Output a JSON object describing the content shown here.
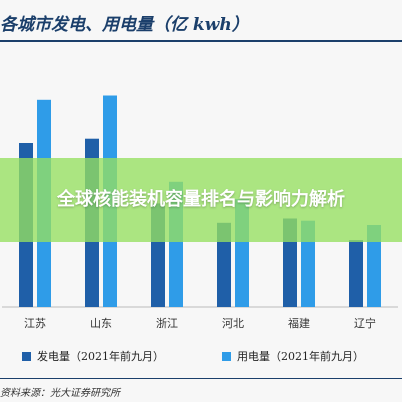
{
  "title": "各城市发电、用电量（亿 kwh）",
  "banner": {
    "text": "全球核能装机容量排名与影响力解析"
  },
  "source": "资料来源：光大证券研究所",
  "colors": {
    "series1": "#1f5fa8",
    "series2": "#2f9ce8",
    "banner": "#96e060"
  },
  "chart_data": {
    "type": "bar",
    "title": "各城市发电、用电量（亿 kwh）",
    "categories": [
      "江苏",
      "山东",
      "浙江",
      "河北",
      "福建",
      "辽宁"
    ],
    "series": [
      {
        "name": "发电量（2021年前九月）",
        "values": [
          3800,
          3900,
          2400,
          1950,
          2050,
          1550
        ]
      },
      {
        "name": "用电量（2021年前九月）",
        "values": [
          4800,
          4900,
          2900,
          2500,
          2000,
          1900
        ]
      }
    ],
    "ylim": [
      0,
      6000
    ],
    "xlabel": "",
    "ylabel": "",
    "grid": false,
    "legend": "bottom"
  }
}
